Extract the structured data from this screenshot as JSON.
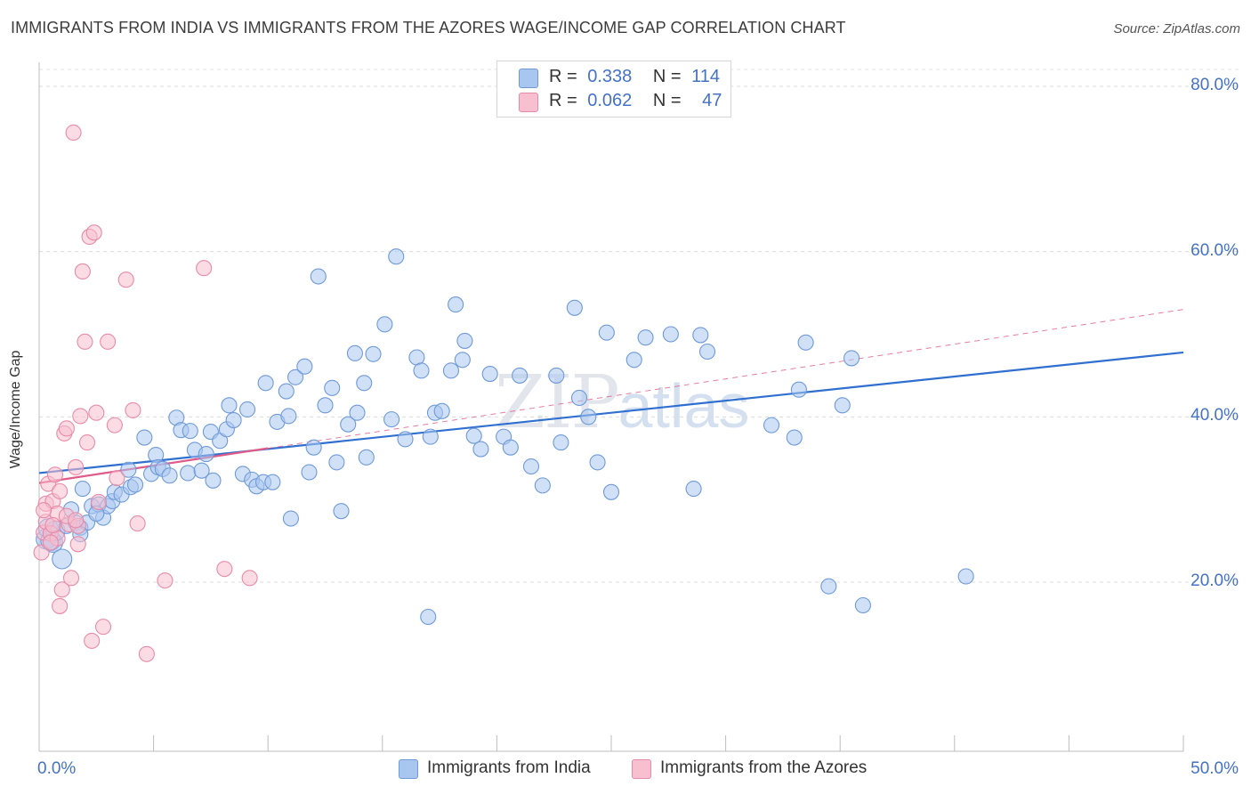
{
  "header": {
    "title": "IMMIGRANTS FROM INDIA VS IMMIGRANTS FROM THE AZORES WAGE/INCOME GAP CORRELATION CHART",
    "source": "Source: ZipAtlas.com"
  },
  "watermark": {
    "zip": "ZIP",
    "atlas": "atlas"
  },
  "legend": {
    "series": [
      {
        "r_label": "R =",
        "r_value": "0.338",
        "n_label": "N =",
        "n_value": "114",
        "color": "#a9c6f0",
        "border": "#6f9ad8"
      },
      {
        "r_label": "R =",
        "r_value": "0.062",
        "n_label": "N =",
        "n_value": "47",
        "color": "#f8bfd0",
        "border": "#e88aa8"
      }
    ]
  },
  "bottom_legend": {
    "items": [
      {
        "label": "Immigrants from India",
        "color": "#a9c6f0",
        "border": "#6f9ad8"
      },
      {
        "label": "Immigrants from the Azores",
        "color": "#f8bfd0",
        "border": "#e88aa8"
      }
    ]
  },
  "chart_data": {
    "type": "scatter",
    "title": "IMMIGRANTS FROM INDIA VS IMMIGRANTS FROM THE AZORES WAGE/INCOME GAP CORRELATION CHART",
    "xlabel": "",
    "ylabel": "Wage/Income Gap",
    "xlim": [
      0,
      50
    ],
    "ylim": [
      0,
      82
    ],
    "x_tick_labels": [
      "0.0%",
      "50.0%"
    ],
    "y_ticks": [
      20,
      40,
      60,
      80
    ],
    "y_tick_labels": [
      "20.0%",
      "40.0%",
      "60.0%",
      "80.0%"
    ],
    "grid": true,
    "legend_position": "top-center",
    "series": [
      {
        "name": "Immigrants from India",
        "color": "#6f9ad8",
        "fill": "#a9c6f0",
        "trend": {
          "x": [
            0,
            50
          ],
          "y": [
            33.2,
            47.8
          ],
          "color": "#2f6fd0",
          "style": "solid"
        },
        "points": [
          [
            0.3,
            25.2
          ],
          [
            0.4,
            26.5
          ],
          [
            0.5,
            25.0
          ],
          [
            0.6,
            24.8
          ],
          [
            0.7,
            26.2
          ],
          [
            1.0,
            22.8
          ],
          [
            1.2,
            26.8
          ],
          [
            1.4,
            28.8
          ],
          [
            1.6,
            27.2
          ],
          [
            1.8,
            26.6
          ],
          [
            1.9,
            31.3
          ],
          [
            2.1,
            27.2
          ],
          [
            2.3,
            29.2
          ],
          [
            2.6,
            29.4
          ],
          [
            2.8,
            27.8
          ],
          [
            3.0,
            29.2
          ],
          [
            3.2,
            29.8
          ],
          [
            3.3,
            30.9
          ],
          [
            3.6,
            30.6
          ],
          [
            3.9,
            33.6
          ],
          [
            4.0,
            31.5
          ],
          [
            4.2,
            31.8
          ],
          [
            4.6,
            37.5
          ],
          [
            4.9,
            33.1
          ],
          [
            5.1,
            35.4
          ],
          [
            5.2,
            33.9
          ],
          [
            5.4,
            33.7
          ],
          [
            5.7,
            32.9
          ],
          [
            6.0,
            39.9
          ],
          [
            6.2,
            38.4
          ],
          [
            6.5,
            33.2
          ],
          [
            6.6,
            38.3
          ],
          [
            6.8,
            36.0
          ],
          [
            7.1,
            33.5
          ],
          [
            7.3,
            35.5
          ],
          [
            7.5,
            38.2
          ],
          [
            7.6,
            32.3
          ],
          [
            7.9,
            37.1
          ],
          [
            8.2,
            38.5
          ],
          [
            8.3,
            41.4
          ],
          [
            8.5,
            39.6
          ],
          [
            8.9,
            33.1
          ],
          [
            9.1,
            40.9
          ],
          [
            9.3,
            32.4
          ],
          [
            9.5,
            31.6
          ],
          [
            9.8,
            32.1
          ],
          [
            9.9,
            44.1
          ],
          [
            10.2,
            32.1
          ],
          [
            10.4,
            39.4
          ],
          [
            10.8,
            43.1
          ],
          [
            10.9,
            40.1
          ],
          [
            11.0,
            27.7
          ],
          [
            11.2,
            44.8
          ],
          [
            11.6,
            46.1
          ],
          [
            11.8,
            33.3
          ],
          [
            12.0,
            36.3
          ],
          [
            12.2,
            57.0
          ],
          [
            12.5,
            41.4
          ],
          [
            12.8,
            43.5
          ],
          [
            13.0,
            34.5
          ],
          [
            13.2,
            28.6
          ],
          [
            13.5,
            39.1
          ],
          [
            13.8,
            47.7
          ],
          [
            13.9,
            40.5
          ],
          [
            14.2,
            44.1
          ],
          [
            14.3,
            35.1
          ],
          [
            14.6,
            47.6
          ],
          [
            15.1,
            51.2
          ],
          [
            15.4,
            39.7
          ],
          [
            15.6,
            59.4
          ],
          [
            16.0,
            37.3
          ],
          [
            16.5,
            47.2
          ],
          [
            16.7,
            45.6
          ],
          [
            17.0,
            15.8
          ],
          [
            17.1,
            37.6
          ],
          [
            17.3,
            40.5
          ],
          [
            17.6,
            40.7
          ],
          [
            18.0,
            45.6
          ],
          [
            18.2,
            53.6
          ],
          [
            18.5,
            46.9
          ],
          [
            18.6,
            49.2
          ],
          [
            19.0,
            37.7
          ],
          [
            19.3,
            36.1
          ],
          [
            19.7,
            45.2
          ],
          [
            20.3,
            37.6
          ],
          [
            20.6,
            36.3
          ],
          [
            21.0,
            45.0
          ],
          [
            21.5,
            34.0
          ],
          [
            22.0,
            31.7
          ],
          [
            22.6,
            45.0
          ],
          [
            22.8,
            36.9
          ],
          [
            23.4,
            53.2
          ],
          [
            23.6,
            42.3
          ],
          [
            24.0,
            40.0
          ],
          [
            24.4,
            34.5
          ],
          [
            24.8,
            50.2
          ],
          [
            25.0,
            30.9
          ],
          [
            26.0,
            46.9
          ],
          [
            26.5,
            49.6
          ],
          [
            27.6,
            50.0
          ],
          [
            28.6,
            31.3
          ],
          [
            28.9,
            49.9
          ],
          [
            29.2,
            47.9
          ],
          [
            32.0,
            39.0
          ],
          [
            33.0,
            37.5
          ],
          [
            33.2,
            43.3
          ],
          [
            33.5,
            49.0
          ],
          [
            34.5,
            19.5
          ],
          [
            35.1,
            41.4
          ],
          [
            35.5,
            47.1
          ],
          [
            36.0,
            17.2
          ],
          [
            40.5,
            20.7
          ],
          [
            1.8,
            25.8
          ],
          [
            2.5,
            28.3
          ]
        ]
      },
      {
        "name": "Immigrants from the Azores",
        "color": "#e88aa8",
        "fill": "#f8bfd0",
        "trend": {
          "x": [
            0,
            50
          ],
          "y": [
            32.0,
            53.0
          ],
          "solid_until": 10,
          "color": "#e05c88",
          "style": "dashed"
        },
        "points": [
          [
            0.1,
            23.6
          ],
          [
            0.2,
            26.0
          ],
          [
            0.3,
            27.3
          ],
          [
            0.3,
            29.5
          ],
          [
            0.4,
            31.9
          ],
          [
            0.5,
            25.9
          ],
          [
            0.6,
            29.8
          ],
          [
            0.7,
            33.0
          ],
          [
            0.8,
            28.3
          ],
          [
            0.9,
            17.1
          ],
          [
            1.0,
            19.1
          ],
          [
            1.1,
            38.0
          ],
          [
            1.2,
            38.6
          ],
          [
            1.3,
            27.0
          ],
          [
            1.4,
            20.5
          ],
          [
            1.5,
            74.4
          ],
          [
            1.6,
            33.9
          ],
          [
            1.7,
            26.8
          ],
          [
            1.8,
            40.1
          ],
          [
            1.9,
            57.6
          ],
          [
            2.0,
            49.1
          ],
          [
            2.1,
            36.9
          ],
          [
            2.2,
            61.8
          ],
          [
            2.3,
            12.9
          ],
          [
            2.4,
            62.3
          ],
          [
            2.5,
            40.5
          ],
          [
            2.6,
            29.7
          ],
          [
            2.8,
            14.6
          ],
          [
            3.0,
            49.1
          ],
          [
            3.3,
            39.0
          ],
          [
            3.4,
            32.6
          ],
          [
            3.8,
            56.6
          ],
          [
            4.1,
            40.8
          ],
          [
            4.3,
            27.1
          ],
          [
            4.7,
            11.3
          ],
          [
            5.5,
            20.2
          ],
          [
            7.2,
            58.0
          ],
          [
            8.1,
            21.6
          ],
          [
            9.2,
            20.5
          ],
          [
            0.8,
            25.3
          ],
          [
            1.2,
            28.0
          ],
          [
            0.5,
            24.8
          ],
          [
            0.2,
            28.7
          ],
          [
            1.6,
            27.5
          ],
          [
            0.9,
            31.0
          ],
          [
            1.7,
            24.6
          ],
          [
            0.6,
            26.9
          ]
        ]
      }
    ]
  }
}
